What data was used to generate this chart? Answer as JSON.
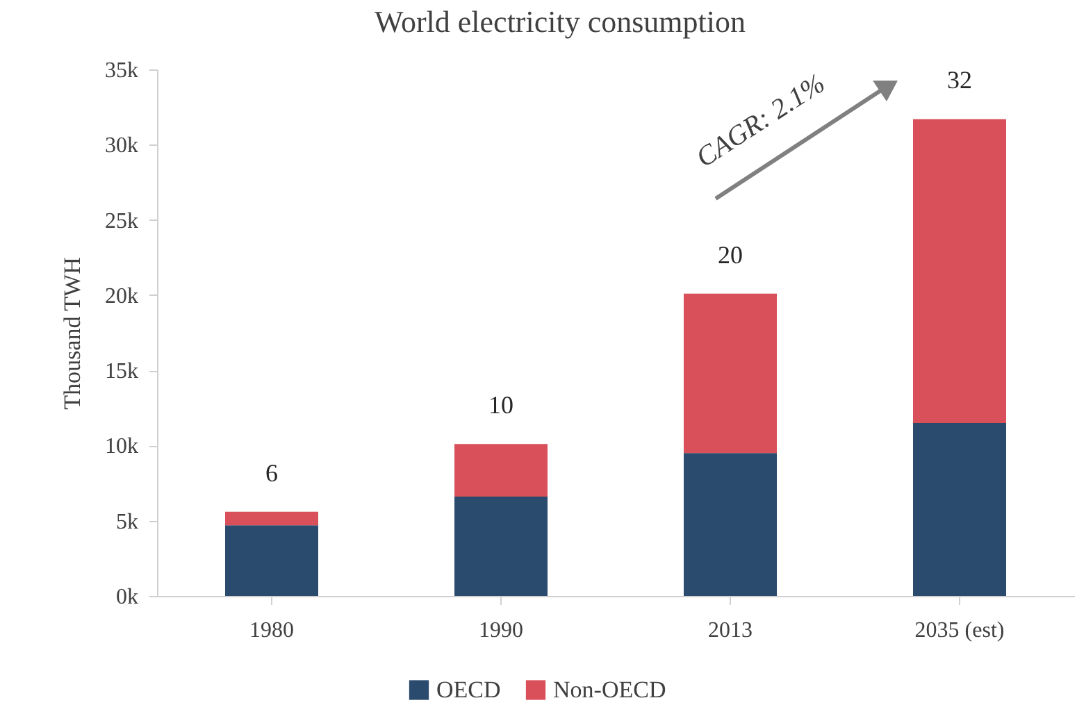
{
  "chart_data": {
    "type": "bar",
    "title": "World electricity consumption",
    "ylabel": "Thousand TWH",
    "categories": [
      "1980",
      "1990",
      "2013",
      "2035 (est)"
    ],
    "stacked": true,
    "series": [
      {
        "name": "OECD",
        "color": "#2a4a6e",
        "values": [
          4.7,
          6.6,
          9.5,
          11.5
        ]
      },
      {
        "name": "Non-OECD",
        "color": "#d9505a",
        "values": [
          0.9,
          3.5,
          10.6,
          20.2
        ]
      }
    ],
    "totals": [
      "6",
      "10",
      "20",
      "32"
    ],
    "ylim": [
      0,
      35
    ],
    "yticks": [
      {
        "value": 0,
        "label": "0k"
      },
      {
        "value": 5,
        "label": "5k"
      },
      {
        "value": 10,
        "label": "10k"
      },
      {
        "value": 15,
        "label": "15k"
      },
      {
        "value": 20,
        "label": "20k"
      },
      {
        "value": 25,
        "label": "25k"
      },
      {
        "value": 30,
        "label": "30k"
      },
      {
        "value": 35,
        "label": "35k"
      }
    ],
    "grid": false,
    "legend": "bottom",
    "annotations": [
      "CAGR: 2.1%"
    ]
  }
}
